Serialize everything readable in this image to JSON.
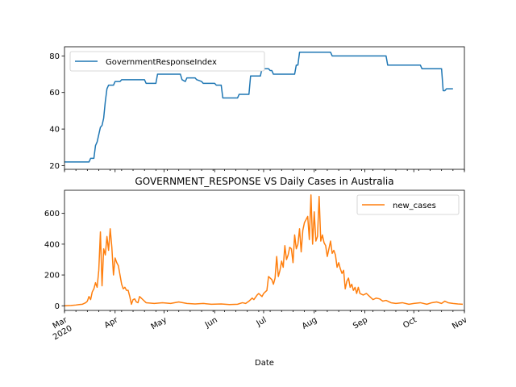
{
  "chart_data": [
    {
      "type": "line",
      "title": "",
      "xlabel": "",
      "ylabel": "",
      "ylim": [
        18,
        85
      ],
      "yticks": [
        20,
        40,
        60,
        80
      ],
      "legend_position": "upper-left",
      "grid": false,
      "series": [
        {
          "name": "GovernmentResponseIndex",
          "color": "#1f77b4",
          "points": [
            [
              "2020-03-01",
              22
            ],
            [
              "2020-03-16",
              22
            ],
            [
              "2020-03-17",
              24
            ],
            [
              "2020-03-19",
              24
            ],
            [
              "2020-03-20",
              31
            ],
            [
              "2020-03-21",
              33
            ],
            [
              "2020-03-22",
              37
            ],
            [
              "2020-03-23",
              41
            ],
            [
              "2020-03-24",
              42
            ],
            [
              "2020-03-25",
              46
            ],
            [
              "2020-03-26",
              55
            ],
            [
              "2020-03-27",
              62
            ],
            [
              "2020-03-28",
              64
            ],
            [
              "2020-03-31",
              64
            ],
            [
              "2020-04-01",
              66
            ],
            [
              "2020-04-04",
              66
            ],
            [
              "2020-04-05",
              67
            ],
            [
              "2020-04-19",
              67
            ],
            [
              "2020-04-20",
              65
            ],
            [
              "2020-04-26",
              65
            ],
            [
              "2020-04-27",
              70
            ],
            [
              "2020-05-11",
              70
            ],
            [
              "2020-05-12",
              67
            ],
            [
              "2020-05-14",
              66
            ],
            [
              "2020-05-15",
              68
            ],
            [
              "2020-05-20",
              68
            ],
            [
              "2020-05-21",
              67
            ],
            [
              "2020-05-24",
              66
            ],
            [
              "2020-05-25",
              65
            ],
            [
              "2020-06-01",
              65
            ],
            [
              "2020-06-02",
              64
            ],
            [
              "2020-06-05",
              64
            ],
            [
              "2020-06-06",
              57
            ],
            [
              "2020-06-15",
              57
            ],
            [
              "2020-06-16",
              59
            ],
            [
              "2020-06-22",
              59
            ],
            [
              "2020-06-23",
              69
            ],
            [
              "2020-06-29",
              69
            ],
            [
              "2020-06-30",
              73
            ],
            [
              "2020-07-04",
              73
            ],
            [
              "2020-07-05",
              72
            ],
            [
              "2020-07-06",
              72
            ],
            [
              "2020-07-07",
              70
            ],
            [
              "2020-07-20",
              70
            ],
            [
              "2020-07-21",
              75
            ],
            [
              "2020-07-22",
              75
            ],
            [
              "2020-07-23",
              82
            ],
            [
              "2020-08-11",
              82
            ],
            [
              "2020-08-12",
              80
            ],
            [
              "2020-09-14",
              80
            ],
            [
              "2020-09-15",
              75
            ],
            [
              "2020-10-05",
              75
            ],
            [
              "2020-10-06",
              73
            ],
            [
              "2020-10-18",
              73
            ],
            [
              "2020-10-19",
              61
            ],
            [
              "2020-10-20",
              61
            ],
            [
              "2020-10-21",
              62
            ],
            [
              "2020-10-25",
              62
            ]
          ]
        }
      ]
    },
    {
      "type": "line",
      "title": "GOVERNMENT_RESPONSE VS Daily Cases in Australia",
      "xlabel": "Date",
      "ylabel": "",
      "ylim": [
        -30,
        750
      ],
      "yticks": [
        0,
        200,
        400,
        600
      ],
      "legend_position": "upper-right",
      "grid": false,
      "x_ticks": [
        "Mar\n2020",
        "Apr",
        "May",
        "Jun",
        "Jul",
        "Aug",
        "Sep",
        "Oct",
        "Nov"
      ],
      "series": [
        {
          "name": "new_cases",
          "color": "#ff7f0e",
          "points": [
            [
              "2020-03-01",
              0
            ],
            [
              "2020-03-05",
              2
            ],
            [
              "2020-03-08",
              5
            ],
            [
              "2020-03-10",
              8
            ],
            [
              "2020-03-12",
              10
            ],
            [
              "2020-03-14",
              20
            ],
            [
              "2020-03-15",
              30
            ],
            [
              "2020-03-16",
              60
            ],
            [
              "2020-03-17",
              40
            ],
            [
              "2020-03-18",
              90
            ],
            [
              "2020-03-19",
              110
            ],
            [
              "2020-03-20",
              150
            ],
            [
              "2020-03-21",
              120
            ],
            [
              "2020-03-22",
              230
            ],
            [
              "2020-03-23",
              480
            ],
            [
              "2020-03-24",
              130
            ],
            [
              "2020-03-25",
              370
            ],
            [
              "2020-03-26",
              330
            ],
            [
              "2020-03-27",
              450
            ],
            [
              "2020-03-28",
              360
            ],
            [
              "2020-03-29",
              500
            ],
            [
              "2020-03-30",
              380
            ],
            [
              "2020-03-31",
              200
            ],
            [
              "2020-04-01",
              310
            ],
            [
              "2020-04-02",
              280
            ],
            [
              "2020-04-03",
              260
            ],
            [
              "2020-04-04",
              200
            ],
            [
              "2020-04-05",
              140
            ],
            [
              "2020-04-06",
              110
            ],
            [
              "2020-04-07",
              120
            ],
            [
              "2020-04-08",
              100
            ],
            [
              "2020-04-09",
              100
            ],
            [
              "2020-04-10",
              60
            ],
            [
              "2020-04-11",
              10
            ],
            [
              "2020-04-12",
              40
            ],
            [
              "2020-04-13",
              45
            ],
            [
              "2020-04-14",
              25
            ],
            [
              "2020-04-15",
              20
            ],
            [
              "2020-04-16",
              60
            ],
            [
              "2020-04-17",
              50
            ],
            [
              "2020-04-18",
              40
            ],
            [
              "2020-04-20",
              20
            ],
            [
              "2020-04-25",
              15
            ],
            [
              "2020-04-30",
              20
            ],
            [
              "2020-05-05",
              15
            ],
            [
              "2020-05-10",
              25
            ],
            [
              "2020-05-15",
              15
            ],
            [
              "2020-05-20",
              12
            ],
            [
              "2020-05-25",
              15
            ],
            [
              "2020-05-30",
              10
            ],
            [
              "2020-06-05",
              12
            ],
            [
              "2020-06-10",
              8
            ],
            [
              "2020-06-15",
              10
            ],
            [
              "2020-06-18",
              20
            ],
            [
              "2020-06-20",
              15
            ],
            [
              "2020-06-22",
              30
            ],
            [
              "2020-06-24",
              50
            ],
            [
              "2020-06-25",
              40
            ],
            [
              "2020-06-27",
              70
            ],
            [
              "2020-06-28",
              80
            ],
            [
              "2020-06-30",
              60
            ],
            [
              "2020-07-01",
              80
            ],
            [
              "2020-07-02",
              90
            ],
            [
              "2020-07-03",
              100
            ],
            [
              "2020-07-04",
              190
            ],
            [
              "2020-07-06",
              170
            ],
            [
              "2020-07-07",
              140
            ],
            [
              "2020-07-08",
              180
            ],
            [
              "2020-07-09",
              320
            ],
            [
              "2020-07-10",
              190
            ],
            [
              "2020-07-11",
              230
            ],
            [
              "2020-07-12",
              290
            ],
            [
              "2020-07-13",
              250
            ],
            [
              "2020-07-14",
              390
            ],
            [
              "2020-07-15",
              300
            ],
            [
              "2020-07-16",
              330
            ],
            [
              "2020-07-17",
              380
            ],
            [
              "2020-07-18",
              370
            ],
            [
              "2020-07-19",
              280
            ],
            [
              "2020-07-20",
              460
            ],
            [
              "2020-07-21",
              370
            ],
            [
              "2020-07-22",
              400
            ],
            [
              "2020-07-23",
              500
            ],
            [
              "2020-07-24",
              350
            ],
            [
              "2020-07-25",
              490
            ],
            [
              "2020-07-26",
              540
            ],
            [
              "2020-07-27",
              560
            ],
            [
              "2020-07-28",
              580
            ],
            [
              "2020-07-29",
              430
            ],
            [
              "2020-07-30",
              720
            ],
            [
              "2020-07-31",
              400
            ],
            [
              "2020-08-01",
              610
            ],
            [
              "2020-08-02",
              420
            ],
            [
              "2020-08-03",
              450
            ],
            [
              "2020-08-04",
              710
            ],
            [
              "2020-08-05",
              420
            ],
            [
              "2020-08-06",
              460
            ],
            [
              "2020-08-07",
              410
            ],
            [
              "2020-08-08",
              390
            ],
            [
              "2020-08-09",
              320
            ],
            [
              "2020-08-10",
              370
            ],
            [
              "2020-08-11",
              420
            ],
            [
              "2020-08-12",
              340
            ],
            [
              "2020-08-13",
              360
            ],
            [
              "2020-08-14",
              330
            ],
            [
              "2020-08-15",
              250
            ],
            [
              "2020-08-16",
              280
            ],
            [
              "2020-08-17",
              240
            ],
            [
              "2020-08-18",
              210
            ],
            [
              "2020-08-19",
              230
            ],
            [
              "2020-08-20",
              110
            ],
            [
              "2020-08-21",
              160
            ],
            [
              "2020-08-22",
              180
            ],
            [
              "2020-08-23",
              120
            ],
            [
              "2020-08-24",
              140
            ],
            [
              "2020-08-25",
              100
            ],
            [
              "2020-08-26",
              120
            ],
            [
              "2020-08-27",
              80
            ],
            [
              "2020-08-28",
              120
            ],
            [
              "2020-08-29",
              80
            ],
            [
              "2020-08-31",
              70
            ],
            [
              "2020-09-02",
              80
            ],
            [
              "2020-09-04",
              60
            ],
            [
              "2020-09-06",
              40
            ],
            [
              "2020-09-08",
              50
            ],
            [
              "2020-09-10",
              45
            ],
            [
              "2020-09-12",
              30
            ],
            [
              "2020-09-14",
              35
            ],
            [
              "2020-09-17",
              20
            ],
            [
              "2020-09-20",
              15
            ],
            [
              "2020-09-24",
              20
            ],
            [
              "2020-09-28",
              10
            ],
            [
              "2020-10-01",
              15
            ],
            [
              "2020-10-05",
              20
            ],
            [
              "2020-10-09",
              10
            ],
            [
              "2020-10-12",
              20
            ],
            [
              "2020-10-15",
              25
            ],
            [
              "2020-10-18",
              15
            ],
            [
              "2020-10-20",
              30
            ],
            [
              "2020-10-22",
              20
            ],
            [
              "2020-10-25",
              15
            ],
            [
              "2020-10-28",
              12
            ],
            [
              "2020-10-31",
              10
            ]
          ]
        }
      ]
    }
  ]
}
